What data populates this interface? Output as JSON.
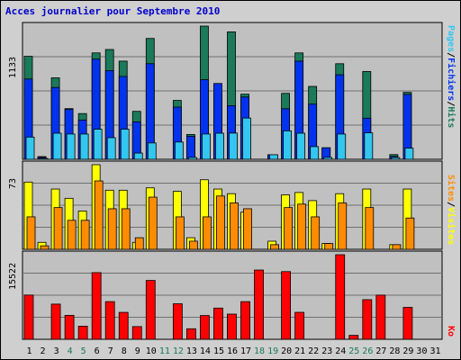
{
  "title": "Acces journalier pour Septembre 2010",
  "panels": {
    "top": {
      "max_label": "1133",
      "right_labels": [
        "Pages",
        "/",
        "Fichiers",
        "/",
        "Hits"
      ]
    },
    "middle": {
      "max_label": "73",
      "right_labels": [
        "Sites",
        "/",
        "Visites"
      ]
    },
    "bottom": {
      "max_label": "15522",
      "right_labels": [
        "Ko"
      ]
    }
  },
  "colors": {
    "hits": "#1a7a5a",
    "files": "#0033ee",
    "pages": "#33c6f0",
    "visits": "#ffff00",
    "sites": "#ff8c00",
    "ko": "#ff0000",
    "day_normal": "#000000",
    "day_weekend": "#1a7a5a"
  },
  "chart_data": {
    "type": "bar",
    "categories": [
      "1",
      "2",
      "3",
      "4",
      "5",
      "6",
      "7",
      "8",
      "9",
      "10",
      "11",
      "12",
      "13",
      "14",
      "15",
      "16",
      "17",
      "18",
      "19",
      "20",
      "21",
      "22",
      "23",
      "24",
      "25",
      "26",
      "27",
      "28",
      "29",
      "30",
      "31"
    ],
    "weekend_days": [
      "4",
      "5",
      "11",
      "12",
      "18",
      "19",
      "25",
      "26"
    ],
    "panels": [
      {
        "name": "top",
        "ymax": 1133,
        "series": [
          {
            "name": "Hits",
            "values": [
              876,
              23,
              693,
              431,
              389,
              905,
              934,
              835,
              408,
              1028,
              0,
              501,
              211,
              1133,
              565,
              1084,
              554,
              0,
              39,
              561,
              905,
              620,
              98,
              813,
              0,
              747,
              0,
              40,
              569,
              0,
              0
            ]
          },
          {
            "name": "Fichiers",
            "values": [
              683,
              16,
              611,
              425,
              334,
              852,
              754,
              705,
              318,
              813,
              0,
              444,
              196,
              677,
              645,
              456,
              530,
              0,
              39,
              430,
              835,
              469,
              98,
              719,
              0,
              350,
              0,
              24,
              552,
              0,
              0
            ]
          },
          {
            "name": "Pages",
            "values": [
              189,
              8,
              222,
              215,
              215,
              256,
              184,
              256,
              53,
              139,
              0,
              147,
              16,
              215,
              222,
              223,
              351,
              0,
              39,
              242,
              222,
              108,
              16,
              215,
              0,
              225,
              0,
              15,
              95,
              0,
              0
            ]
          }
        ]
      },
      {
        "name": "middle",
        "ymax": 73,
        "series": [
          {
            "name": "Visites",
            "values": [
              58,
              6,
              52,
              44,
              33,
              73,
              51,
              51,
              6,
              53,
              0,
              50,
              10,
              60,
              52,
              48,
              32,
              0,
              7,
              47,
              49,
              42,
              5,
              48,
              0,
              52,
              0,
              4,
              52,
              0,
              0
            ]
          },
          {
            "name": "Sites",
            "values": [
              28,
              3,
              36,
              25,
              25,
              59,
              35,
              35,
              10,
              45,
              0,
              28,
              7,
              28,
              46,
              40,
              35,
              0,
              4,
              36,
              39,
              28,
              5,
              40,
              0,
              36,
              0,
              4,
              27,
              0,
              0
            ]
          }
        ]
      },
      {
        "name": "bottom",
        "ymax": 15522,
        "series": [
          {
            "name": "Ko",
            "values": [
              8116,
              0,
              6457,
              4395,
              2404,
              12231,
              6914,
              4942,
              2331,
              10800,
              0,
              6523,
              1931,
              4355,
              5728,
              4623,
              6912,
              12709,
              0,
              12420,
              4948,
              0,
              0,
              15522,
              725,
              7272,
              8107,
              0,
              5859,
              0,
              0
            ]
          }
        ]
      }
    ]
  }
}
